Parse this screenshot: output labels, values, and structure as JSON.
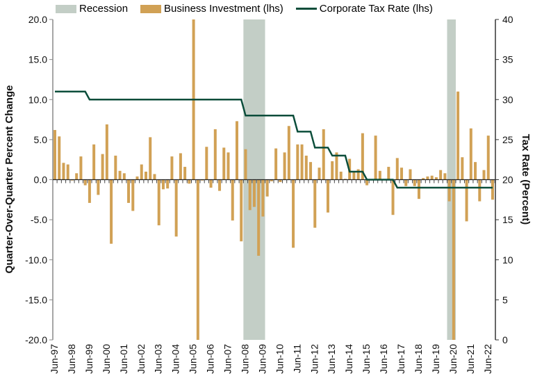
{
  "chart_data": {
    "type": "bar+line",
    "legend": [
      {
        "label": "Recession",
        "color": "#C3CEC6"
      },
      {
        "label": "Business Investment (lhs)",
        "color": "#D1A155"
      },
      {
        "label": "Corporate Tax Rate (lhs)",
        "color": "#0B4D3A"
      }
    ],
    "legend_position": "top",
    "ylabel": "Quarter-Over-Quarter Percent Change",
    "y2label": "Tax Rate (Percent)",
    "ylim": [
      -20,
      20
    ],
    "y2lim": [
      0,
      40
    ],
    "yticks": [
      "20.0",
      "15.0",
      "10.0",
      "5.0",
      "0.0",
      "-5.0",
      "-10.0",
      "-15.0",
      "-20.0"
    ],
    "y2ticks": [
      "40",
      "35",
      "30",
      "25",
      "20",
      "15",
      "10",
      "5",
      "0"
    ],
    "xtick_labels": [
      "Jun-97",
      "Jun-98",
      "Jun-99",
      "Jun-00",
      "Jun-01",
      "Jun-02",
      "Jun-03",
      "Jun-04",
      "Jun-05",
      "Jun-06",
      "Jun-07",
      "Jun-08",
      "Jun-09",
      "Jun-10",
      "Jun-11",
      "Jun-12",
      "Jun-13",
      "Jun-14",
      "Jun-15",
      "Jun-16",
      "Jun-17",
      "Jun-18",
      "Jun-19",
      "Jun-20",
      "Jun-21",
      "Jun-22"
    ],
    "business_investment": [
      6.2,
      5.4,
      2.1,
      1.9,
      -0.1,
      0.8,
      2.9,
      -0.7,
      -2.9,
      4.4,
      -1.9,
      3.2,
      6.9,
      -8.0,
      3.0,
      1.1,
      0.8,
      -2.9,
      -3.9,
      0.4,
      1.9,
      1.0,
      5.3,
      0.7,
      -5.7,
      -1.2,
      -1.1,
      2.9,
      -7.1,
      3.3,
      1.6,
      -0.5,
      20.0,
      -20.0,
      -0.1,
      4.1,
      -1.0,
      6.3,
      -1.4,
      4.0,
      3.4,
      -5.1,
      7.3,
      -7.7,
      3.8,
      -3.8,
      -3.4,
      -9.5,
      -4.6,
      -2.1,
      -0.2,
      3.9,
      -0.3,
      3.4,
      6.7,
      -8.5,
      4.4,
      4.4,
      3.0,
      2.2,
      -6.0,
      1.5,
      6.3,
      -4.1,
      2.3,
      3.4,
      1.0,
      0.1,
      2.6,
      1.0,
      1.3,
      5.8,
      -0.7,
      0.0,
      5.5,
      1.1,
      0.0,
      1.6,
      -4.4,
      2.7,
      1.5,
      -0.8,
      1.3,
      -0.8,
      -2.4,
      0.2,
      0.4,
      0.5,
      0.3,
      1.2,
      0.8,
      -2.7,
      -20.0,
      11.0,
      2.8,
      -5.2,
      6.4,
      2.2,
      -2.7,
      1.2,
      5.5,
      -2.5
    ],
    "tax_rate": [
      31,
      31,
      31,
      31,
      31,
      31,
      31,
      31,
      30,
      30,
      30,
      30,
      30,
      30,
      30,
      30,
      30,
      30,
      30,
      30,
      30,
      30,
      30,
      30,
      30,
      30,
      30,
      30,
      30,
      30,
      30,
      30,
      30,
      30,
      30,
      30,
      30,
      30,
      30,
      30,
      30,
      30,
      30,
      30,
      28,
      28,
      28,
      28,
      28,
      28,
      28,
      28,
      28,
      28,
      28,
      28,
      26,
      26,
      26,
      26,
      24,
      24,
      24,
      24,
      23,
      23,
      23,
      23,
      21,
      21,
      21,
      21,
      20,
      20,
      20,
      20,
      20,
      20,
      20,
      19,
      19,
      19,
      19,
      19,
      19,
      19,
      19,
      19,
      19,
      19,
      19,
      19,
      19,
      19,
      19,
      19,
      19,
      19,
      19,
      19,
      19,
      19
    ],
    "recession_quarter_ranges": [
      [
        44,
        48
      ],
      [
        91,
        92
      ]
    ],
    "first_quarter": "Jun-97"
  }
}
